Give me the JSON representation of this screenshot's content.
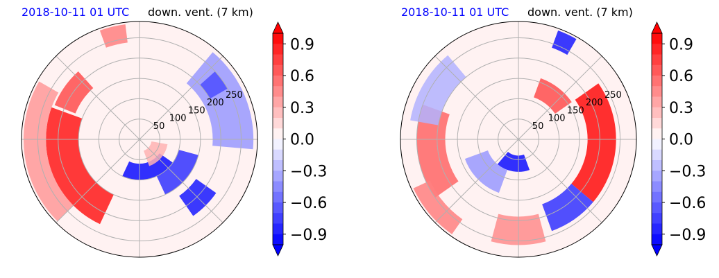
{
  "colors": {
    "positive": "#ff0000",
    "negative": "#0000ff",
    "neutral": "#ffffff",
    "grid": "#b0b0b0",
    "date_text": "#0000ff"
  },
  "chart_data": [
    {
      "type": "heatmap",
      "projection": "polar",
      "date_label": "2018-10-11 01 UTC",
      "title": "down. vent. (7 km)",
      "radial_ticks": [
        "50",
        "100",
        "150",
        "200",
        "250"
      ],
      "radial_values": [
        50,
        100,
        150,
        200,
        250
      ],
      "rlim": [
        0,
        290
      ],
      "grid": true,
      "colorbar": {
        "ticks": [
          "0.9",
          "0.6",
          "0.3",
          "0.0",
          "−0.3",
          "−0.6",
          "−0.9"
        ],
        "tick_values": [
          0.9,
          0.6,
          0.3,
          0.0,
          -0.3,
          -0.6,
          -0.9
        ],
        "range": [
          -1.0,
          1.0
        ],
        "extend": "both",
        "colormap": "bwr"
      },
      "features": [
        {
          "kind": "arc",
          "r_range": [
            150,
            230
          ],
          "az_range": [
            205,
            290
          ],
          "value": 0.9
        },
        {
          "kind": "arc",
          "r_range": [
            230,
            285
          ],
          "az_range": [
            225,
            300
          ],
          "value": 0.4
        },
        {
          "kind": "arc",
          "r_range": [
            170,
            225
          ],
          "az_range": [
            292,
            318
          ],
          "value": 0.7
        },
        {
          "kind": "arc",
          "r_range": [
            240,
            285
          ],
          "az_range": [
            340,
            353
          ],
          "value": 0.5
        },
        {
          "kind": "arc",
          "r_range": [
            60,
            100
          ],
          "az_range": [
            125,
            205
          ],
          "value": -0.95
        },
        {
          "kind": "arc",
          "r_range": [
            100,
            150
          ],
          "az_range": [
            105,
            155
          ],
          "value": -0.8
        },
        {
          "kind": "arc",
          "r_range": [
            170,
            230
          ],
          "az_range": [
            125,
            145
          ],
          "value": -0.9
        },
        {
          "kind": "arc",
          "r_range": [
            180,
            280
          ],
          "az_range": [
            40,
            95
          ],
          "value": -0.4
        },
        {
          "kind": "arc",
          "r_range": [
            200,
            250
          ],
          "az_range": [
            48,
            60
          ],
          "value": -0.7
        },
        {
          "kind": "arc",
          "r_range": [
            30,
            70
          ],
          "az_range": [
            100,
            160
          ],
          "value": 0.3
        },
        {
          "kind": "arc",
          "r_range": [
            0,
            290
          ],
          "az_range": [
            0,
            360
          ],
          "value": 0.06
        }
      ]
    },
    {
      "type": "heatmap",
      "projection": "polar",
      "date_label": "2018-10-11 01 UTC",
      "title": "down. vent. (7 km)",
      "radial_ticks": [
        "50",
        "100",
        "150",
        "200",
        "250"
      ],
      "radial_values": [
        50,
        100,
        150,
        200,
        250
      ],
      "rlim": [
        0,
        290
      ],
      "grid": true,
      "colorbar": {
        "ticks": [
          "0.9",
          "0.6",
          "0.3",
          "0.0",
          "−0.3",
          "−0.6",
          "−0.9"
        ],
        "tick_values": [
          0.9,
          0.6,
          0.3,
          0.0,
          -0.3,
          -0.6,
          -0.9
        ],
        "range": [
          -1.0,
          1.0
        ],
        "extend": "both",
        "colormap": "bwr"
      },
      "features": [
        {
          "kind": "arc",
          "r_range": [
            170,
            240
          ],
          "az_range": [
            55,
            130
          ],
          "value": 0.95
        },
        {
          "kind": "arc",
          "r_range": [
            110,
            160
          ],
          "az_range": [
            20,
            55
          ],
          "value": 0.7
        },
        {
          "kind": "arc",
          "r_range": [
            180,
            250
          ],
          "az_range": [
            235,
            290
          ],
          "value": 0.6
        },
        {
          "kind": "arc",
          "r_range": [
            240,
            285
          ],
          "az_range": [
            215,
            245
          ],
          "value": 0.5
        },
        {
          "kind": "arc",
          "r_range": [
            40,
            80
          ],
          "az_range": [
            160,
            220
          ],
          "value": -0.95
        },
        {
          "kind": "arc",
          "r_range": [
            80,
            140
          ],
          "az_range": [
            200,
            250
          ],
          "value": -0.4
        },
        {
          "kind": "arc",
          "r_range": [
            170,
            240
          ],
          "az_range": [
            130,
            160
          ],
          "value": -0.8
        },
        {
          "kind": "arc",
          "r_range": [
            240,
            285
          ],
          "az_range": [
            20,
            30
          ],
          "value": -0.9
        },
        {
          "kind": "arc",
          "r_range": [
            200,
            270
          ],
          "az_range": [
            280,
            320
          ],
          "value": -0.3
        },
        {
          "kind": "arc",
          "r_range": [
            190,
            260
          ],
          "az_range": [
            165,
            195
          ],
          "value": 0.45
        },
        {
          "kind": "arc",
          "r_range": [
            0,
            290
          ],
          "az_range": [
            0,
            360
          ],
          "value": 0.06
        }
      ]
    }
  ]
}
